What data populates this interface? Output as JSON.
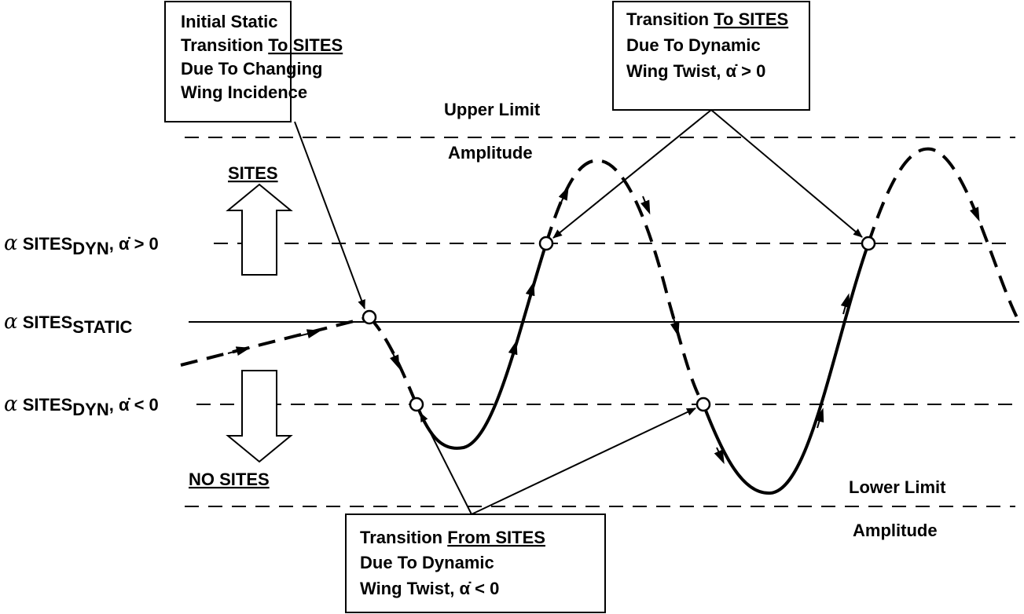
{
  "boxes": [
    {
      "lines": [
        {
          "text": "Initial Static"
        },
        {
          "text": "Transition",
          "underlined": "To SITES"
        },
        {
          "text": "Due To Changing"
        },
        {
          "text": "Wing Incidence"
        }
      ]
    },
    {
      "lines": [
        {
          "text": "Transition",
          "underlined": "To SITES"
        },
        {
          "text": "Due To Dynamic"
        },
        {
          "text": "Wing Twist, α̇ > 0"
        }
      ]
    },
    {
      "lines": [
        {
          "text": "Transition",
          "underlined": "From SITES"
        },
        {
          "text": "Due To Dynamic"
        },
        {
          "text": "Wing Twist, α̇ < 0"
        }
      ]
    }
  ],
  "limits": {
    "upper": [
      "Upper Limit",
      "Amplitude"
    ],
    "lower": [
      "Lower Limit",
      "Amplitude"
    ]
  },
  "regions": {
    "sites": "SITES",
    "no_sites": "NO SITES"
  },
  "levels": [
    {
      "symbol": "α",
      "name": "SITES",
      "subscript": "DYN",
      "suffix": ", α̇ > 0"
    },
    {
      "symbol": "α",
      "name": "SITES",
      "subscript": "STATIC"
    },
    {
      "symbol": "α",
      "name": "SITES",
      "subscript": "DYN",
      "suffix": ", α̇ < 0"
    }
  ]
}
